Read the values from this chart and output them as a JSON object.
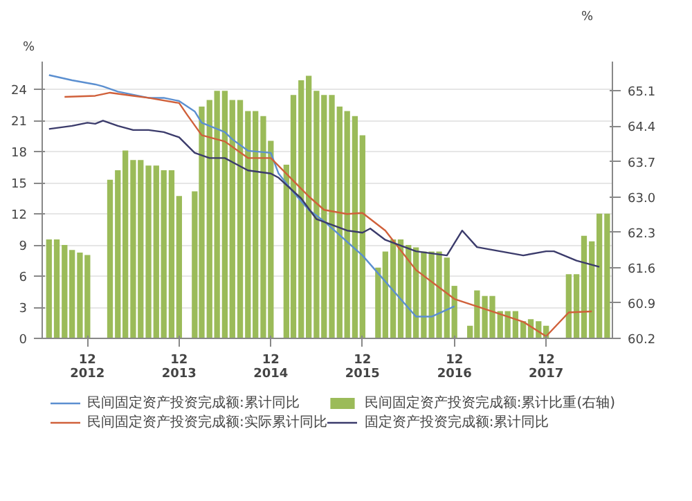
{
  "chart_data": {
    "type": "line",
    "ylabel": "%",
    "y2label": "%",
    "xlim": [
      "2012-06-04",
      "2018-08-22"
    ],
    "ylim": [
      0,
      26.7
    ],
    "y2lim": [
      60.2,
      65.68
    ],
    "xticks": [
      {
        "value": "2012-12",
        "label": "12\n2012"
      },
      {
        "value": "2013-12",
        "label": "12\n2013"
      },
      {
        "value": "2014-12",
        "label": "12\n2014"
      },
      {
        "value": "2015-12",
        "label": "12\n2015"
      },
      {
        "value": "2016-12",
        "label": "12\n2016"
      },
      {
        "value": "2017-12",
        "label": "12\n2017"
      }
    ],
    "yticks": [
      0,
      3,
      6,
      9,
      12,
      15,
      18,
      21,
      24
    ],
    "y2ticks": [
      60.2,
      60.9,
      61.6,
      62.3,
      {
        "value": 63,
        "label": "63.0"
      },
      63.7,
      64.4,
      65.1
    ],
    "grid": "y",
    "legend": "bottom",
    "marker": "none",
    "line_style": "solid",
    "series": [
      {
        "name": "民间固定资产投资完成额:累计同比",
        "color": "#5b8fd0",
        "x": [
          "2012-07",
          "2012-10",
          "2013-01",
          "2013-02",
          "2013-04",
          "2013-08",
          "2013-10",
          "2013-12",
          "2014-02",
          "2014-03",
          "2014-06",
          "2014-07",
          "2014-09",
          "2014-12",
          "2015-01",
          "2015-03",
          "2015-05",
          "2015-07",
          "2015-12",
          "2016-07",
          "2016-09",
          "2016-12"
        ],
        "values": [
          25.4,
          24.9,
          24.5,
          24.3,
          23.8,
          23.2,
          23.2,
          22.9,
          21.9,
          20.8,
          19.9,
          19.2,
          18.1,
          17.9,
          15.9,
          14.1,
          12.4,
          11.3,
          8.0,
          2.1,
          2.1,
          3.1
        ]
      },
      {
        "name": "民间固定资产投资完成额:实际累计同比",
        "color": "#d0603a",
        "x": [
          "2012-09",
          "2013-01",
          "2013-03",
          "2013-06",
          "2013-08",
          "2013-12",
          "2014-01",
          "2014-03",
          "2014-05",
          "2014-06",
          "2014-09",
          "2014-12",
          "2015-03",
          "2015-05",
          "2015-07",
          "2015-10",
          "2015-12",
          "2016-03",
          "2016-07",
          "2016-12",
          "2017-05",
          "2017-09",
          "2017-12",
          "2018-03",
          "2018-06"
        ],
        "values": [
          23.3,
          23.4,
          23.7,
          23.4,
          23.2,
          22.7,
          21.6,
          19.6,
          19.2,
          19.0,
          17.4,
          17.4,
          15.2,
          13.7,
          12.4,
          12.0,
          12.1,
          10.4,
          6.6,
          3.8,
          2.6,
          1.6,
          0.2,
          2.5,
          2.6
        ]
      },
      {
        "name": "民间固定资产投资完成额:累计比重(右轴)",
        "type": "bar",
        "axis": "y2",
        "color": "#9bbb59",
        "x": [
          "2012-07",
          "2012-08",
          "2012-09",
          "2012-10",
          "2012-11",
          "2012-12",
          "2013-03",
          "2013-04",
          "2013-05",
          "2013-06",
          "2013-07",
          "2013-08",
          "2013-09",
          "2013-10",
          "2013-11",
          "2013-12",
          "2014-02",
          "2014-03",
          "2014-04",
          "2014-05",
          "2014-06",
          "2014-07",
          "2014-08",
          "2014-09",
          "2014-10",
          "2014-11",
          "2014-12",
          "2015-02",
          "2015-03",
          "2015-04",
          "2015-05",
          "2015-06",
          "2015-07",
          "2015-08",
          "2015-09",
          "2015-10",
          "2015-11",
          "2015-12",
          "2016-02",
          "2016-03",
          "2016-04",
          "2016-05",
          "2016-06",
          "2016-07",
          "2016-08",
          "2016-09",
          "2016-10",
          "2016-11",
          "2016-12",
          "2017-02",
          "2017-03",
          "2017-04",
          "2017-05",
          "2017-06",
          "2017-07",
          "2017-08",
          "2017-09",
          "2017-10",
          "2017-11",
          "2017-12",
          "2018-03",
          "2018-04",
          "2018-05",
          "2018-06",
          "2018-07",
          "2018-08"
        ],
        "values": [
          62.16,
          62.16,
          62.05,
          61.95,
          61.9,
          61.85,
          63.34,
          63.53,
          63.92,
          63.73,
          63.73,
          63.62,
          63.62,
          63.53,
          63.53,
          63.02,
          63.11,
          64.79,
          64.92,
          65.1,
          65.1,
          64.92,
          64.92,
          64.7,
          64.7,
          64.6,
          64.11,
          63.64,
          65.02,
          65.31,
          65.4,
          65.1,
          65.02,
          65.02,
          64.79,
          64.7,
          64.6,
          64.22,
          61.6,
          61.92,
          62.16,
          62.16,
          62.05,
          62.0,
          61.92,
          61.92,
          61.92,
          61.8,
          61.24,
          60.45,
          61.15,
          61.04,
          61.04,
          60.74,
          60.74,
          60.74,
          60.54,
          60.58,
          60.54,
          60.45,
          61.47,
          61.47,
          62.23,
          62.12,
          62.67,
          62.67
        ]
      },
      {
        "name": "固定资产投资完成额:累计同比",
        "color": "#3b3b6b",
        "x": [
          "2012-07",
          "2012-10",
          "2012-12",
          "2013-01",
          "2013-02",
          "2013-04",
          "2013-06",
          "2013-08",
          "2013-10",
          "2013-12",
          "2014-02",
          "2014-04",
          "2014-06",
          "2014-07",
          "2014-09",
          "2014-12",
          "2015-01",
          "2015-04",
          "2015-06",
          "2015-10",
          "2015-12",
          "2016-01",
          "2016-03",
          "2016-07",
          "2016-11",
          "2017-01",
          "2017-03",
          "2017-06",
          "2017-09",
          "2017-12",
          "2018-01",
          "2018-04",
          "2018-07"
        ],
        "values": [
          20.2,
          20.5,
          20.8,
          20.7,
          21.0,
          20.5,
          20.1,
          20.1,
          19.9,
          19.4,
          17.9,
          17.4,
          17.4,
          17.0,
          16.2,
          15.9,
          15.5,
          13.5,
          11.5,
          10.4,
          10.2,
          10.6,
          9.5,
          8.4,
          8.0,
          10.4,
          8.8,
          8.4,
          8.0,
          8.4,
          8.4,
          7.5,
          6.9
        ]
      }
    ]
  }
}
